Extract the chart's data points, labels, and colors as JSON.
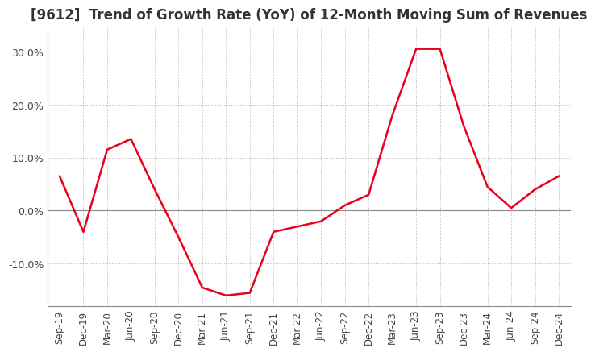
{
  "title": "[9612]  Trend of Growth Rate (YoY) of 12-Month Moving Sum of Revenues",
  "title_fontsize": 12,
  "line_color": "#e8001c",
  "background_color": "#ffffff",
  "plot_bg_color": "#ffffff",
  "grid_color": "#aaaaaa",
  "zero_line_color": "#888888",
  "border_color": "#888888",
  "ylim": [
    -0.18,
    0.345
  ],
  "yticks": [
    -0.1,
    0.0,
    0.1,
    0.2,
    0.3
  ],
  "ytick_labels": [
    "-10.0%",
    "0.0%",
    "10.0%",
    "20.0%",
    "30.0%"
  ],
  "dates": [
    "Sep-19",
    "Dec-19",
    "Mar-20",
    "Jun-20",
    "Sep-20",
    "Dec-20",
    "Mar-21",
    "Jun-21",
    "Sep-21",
    "Dec-21",
    "Mar-22",
    "Jun-22",
    "Sep-22",
    "Dec-22",
    "Mar-23",
    "Jun-23",
    "Sep-23",
    "Dec-23",
    "Mar-24",
    "Jun-24",
    "Sep-24",
    "Dec-24"
  ],
  "values": [
    0.065,
    -0.04,
    0.115,
    0.135,
    0.04,
    -0.05,
    -0.145,
    -0.16,
    -0.155,
    -0.04,
    -0.03,
    -0.02,
    0.01,
    0.03,
    0.18,
    0.305,
    0.305,
    0.16,
    0.045,
    0.005,
    0.04,
    0.065
  ]
}
